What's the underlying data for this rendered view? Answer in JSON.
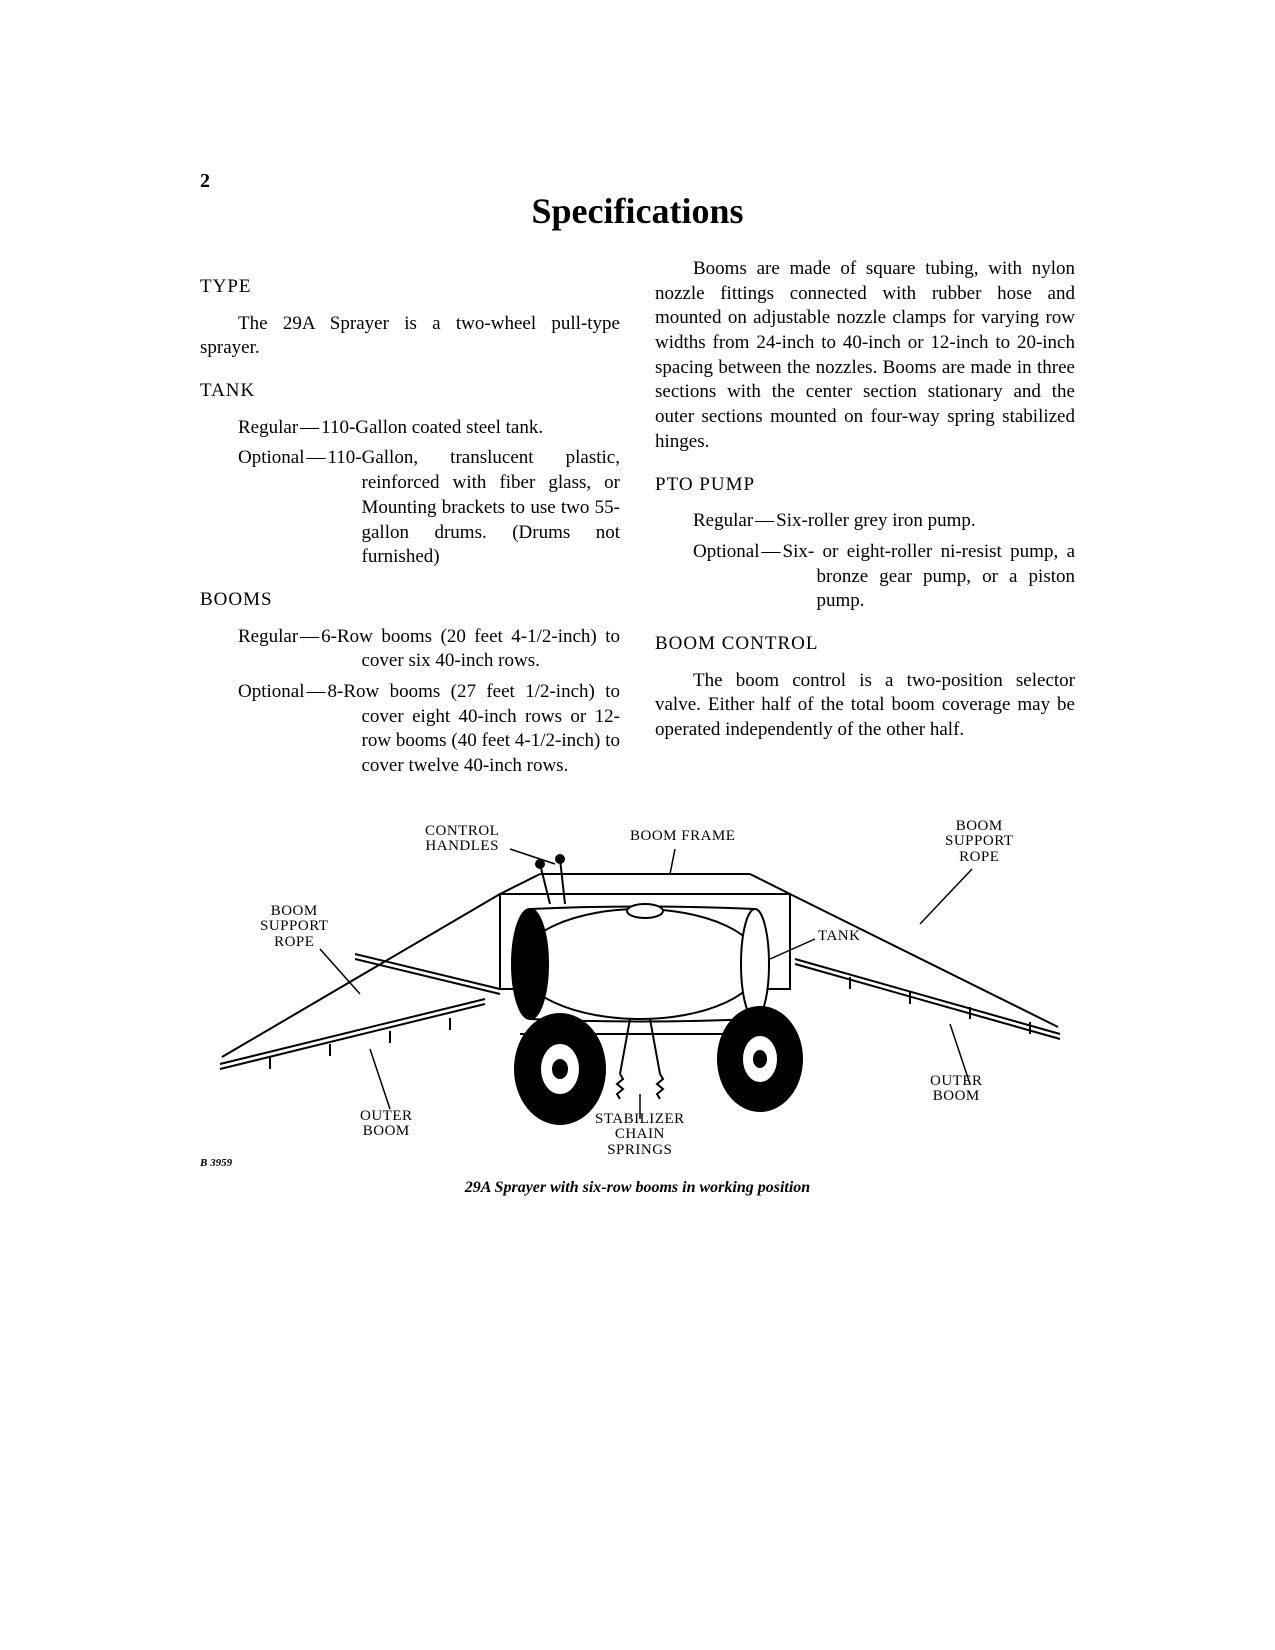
{
  "page_number": "2",
  "title": "Specifications",
  "sections": {
    "type": {
      "heading": "TYPE",
      "body": "The 29A Sprayer is a two-wheel pull-type sprayer."
    },
    "tank": {
      "heading": "TANK",
      "regular_label": "Regular",
      "regular_desc": "110-Gallon coated steel tank.",
      "optional_label": "Optional",
      "optional_desc": "110-Gallon, translucent plastic, reinforced with fiber glass, or Mounting brackets to use two 55-gallon drums. (Drums not furnished)"
    },
    "booms": {
      "heading": "BOOMS",
      "regular_label": "Regular",
      "regular_desc": "6-Row booms (20 feet 4-1/2-inch) to cover six 40-inch rows.",
      "optional_label": "Optional",
      "optional_desc": "8-Row booms (27 feet 1/2-inch) to cover eight 40-inch rows or 12-row booms (40 feet 4-1/2-inch) to cover twelve 40-inch rows.",
      "body": "Booms are made of square tubing, with nylon nozzle fittings connected with rubber hose and mounted on adjustable nozzle clamps for varying row widths from 24-inch to 40-inch or 12-inch to 20-inch spacing between the nozzles. Booms are made in three sections with the center section stationary and the outer sections mounted on four-way spring stabilized hinges."
    },
    "pto_pump": {
      "heading": "PTO PUMP",
      "regular_label": "Regular",
      "regular_desc": "Six-roller grey iron pump.",
      "optional_label": "Optional",
      "optional_desc": "Six- or eight-roller ni-resist pump, a bronze gear pump, or a piston pump."
    },
    "boom_control": {
      "heading": "BOOM CONTROL",
      "body": "The boom control is a two-position selector valve. Either half of the total boom coverage may be operated independently of the other half."
    }
  },
  "figure": {
    "caption": "29A Sprayer with six-row booms in working position",
    "ref": "B 3959",
    "labels": {
      "control_handles": "CONTROL\nHANDLES",
      "boom_frame": "BOOM FRAME",
      "boom_support_rope_right": "BOOM\nSUPPORT\nROPE",
      "boom_support_rope_left": "BOOM\nSUPPORT\nROPE",
      "tank": "TANK",
      "outer_boom_right": "OUTER\nBOOM",
      "outer_boom_left": "OUTER\nBOOM",
      "stabilizer_chain_springs": "STABILIZER\nCHAIN\nSPRINGS"
    }
  },
  "dash": "—"
}
